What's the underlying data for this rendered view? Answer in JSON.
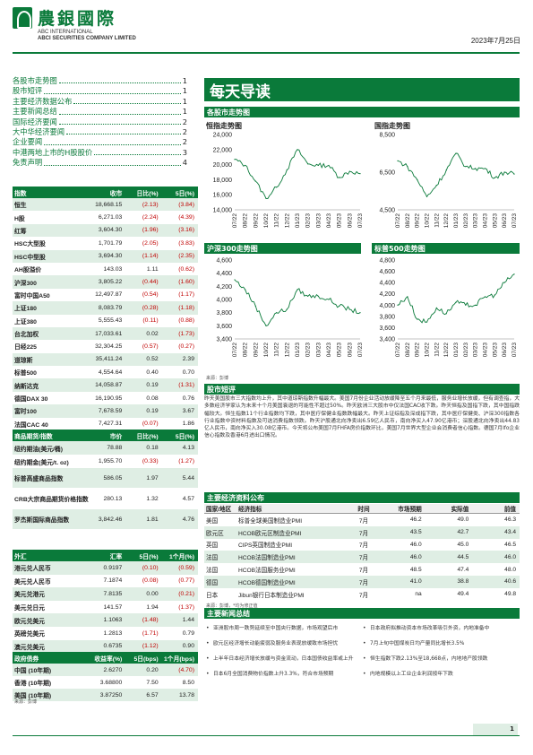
{
  "header": {
    "bank_cn": "農銀國際",
    "bank_en1": "ABC INTERNATIONAL",
    "bank_en2": "ABCI SECURITIES COMPANY LIMITED",
    "date": "2023年7月25日"
  },
  "toc": [
    {
      "label": "各股市走势图",
      "page": "1"
    },
    {
      "label": "股市短评",
      "page": "1"
    },
    {
      "label": "主要经济数据公布",
      "page": "1"
    },
    {
      "label": "主要新闻总结",
      "page": "1"
    },
    {
      "label": "国际经济要闻",
      "page": "2"
    },
    {
      "label": "大中华经济要闻",
      "page": "2"
    },
    {
      "label": "企业要闻",
      "page": "2"
    },
    {
      "label": "中港两地上市的H股股价",
      "page": "3"
    },
    {
      "label": "免责声明",
      "page": "4"
    }
  ],
  "title": "每天导读",
  "indices": {
    "headers": [
      "指数",
      "收市",
      "日比(%)",
      "5日(%)"
    ],
    "rows": [
      [
        "恒生",
        "18,668.15",
        "(2.13)",
        "(3.84)"
      ],
      [
        "H股",
        "6,271.03",
        "(2.24)",
        "(4.39)"
      ],
      [
        "红筹",
        "3,604.30",
        "(1.96)",
        "(3.16)"
      ],
      [
        "HSC大型股",
        "1,701.79",
        "(2.05)",
        "(3.83)"
      ],
      [
        "HSC中型股",
        "3,694.30",
        "(1.14)",
        "(2.35)"
      ],
      [
        "AH股溢价",
        "143.03",
        "1.11",
        "(0.62)"
      ],
      [
        "沪深300",
        "3,805.22",
        "(0.44)",
        "(1.60)"
      ],
      [
        "富时中国A50",
        "12,497.87",
        "(0.54)",
        "(1.17)"
      ],
      [
        "上证180",
        "8,083.79",
        "(0.28)",
        "(1.18)"
      ],
      [
        "上证380",
        "5,555.43",
        "(0.11)",
        "(0.88)"
      ],
      [
        "台北加权",
        "17,033.61",
        "0.02",
        "(1.73)"
      ],
      [
        "日经225",
        "32,304.25",
        "(0.57)",
        "(0.27)"
      ],
      [
        "道琼斯",
        "35,411.24",
        "0.52",
        "2.39"
      ],
      [
        "标普500",
        "4,554.64",
        "0.40",
        "0.70"
      ],
      [
        "纳斯达克",
        "14,058.87",
        "0.19",
        "(1.31)"
      ],
      [
        "德国DAX 30",
        "16,190.95",
        "0.08",
        "0.76"
      ],
      [
        "富时100",
        "7,678.59",
        "0.19",
        "3.67"
      ],
      [
        "法国CAC 40",
        "7,427.31",
        "(0.07)",
        "1.86"
      ]
    ]
  },
  "commodities": {
    "headers": [
      "商品期货/指数",
      "市价",
      "日比(%)",
      "5日(%)"
    ],
    "rows": [
      [
        "纽约期油(美元/桶)",
        "78.88",
        "0.18",
        "4.13"
      ],
      [
        "纽约期金(美元/t. oz)",
        "1,955.70",
        "(0.33)",
        "(1.27)"
      ],
      [
        "标普高盛商品指数",
        "586.05",
        "1.97",
        "5.44"
      ],
      [
        "CRB大宗商品期货价格指数",
        "280.13",
        "1.32",
        "4.57"
      ],
      [
        "罗杰斯国际商品指数",
        "3,842.46",
        "1.81",
        "4.76"
      ]
    ]
  },
  "fx": {
    "headers": [
      "外汇",
      "汇率",
      "5日(%)",
      "1个月(%)"
    ],
    "rows": [
      [
        "港元兑人民币",
        "0.9197",
        "(0.10)",
        "(0.59)"
      ],
      [
        "美元兑人民币",
        "7.1874",
        "(0.08)",
        "(0.77)"
      ],
      [
        "美元兑港元",
        "7.8135",
        "0.00",
        "(0.21)"
      ],
      [
        "美元兑日元",
        "141.57",
        "1.94",
        "(1.37)"
      ],
      [
        "欧元兑美元",
        "1.1063",
        "(1.48)",
        "1.44"
      ],
      [
        "英磅兑美元",
        "1.2813",
        "(1.71)",
        "0.79"
      ],
      [
        "澳元兑美元",
        "0.6735",
        "(1.12)",
        "0.90"
      ]
    ]
  },
  "bonds": {
    "headers": [
      "政府债券",
      "收益率(%)",
      "5日(bps)",
      "1个月(bps)"
    ],
    "rows": [
      [
        "中国 (10年期)",
        "2.6270",
        "0.20",
        "(4.70)"
      ],
      [
        "香港 (10年期)",
        "3.68800",
        "7.50",
        "8.50"
      ],
      [
        "美国 (10年期)",
        "3.87250",
        "6.57",
        "13.78"
      ]
    ]
  },
  "table_source": "来源：彭博",
  "section_charts": "各股市走势图",
  "charts_source": "来源：彭博",
  "chart_data": [
    {
      "type": "line",
      "title": "恒指走势图",
      "x": [
        "07/22",
        "08/22",
        "09/22",
        "10/22",
        "11/22",
        "12/22",
        "01/23",
        "02/23",
        "03/23",
        "04/23",
        "05/23",
        "06/23",
        "07/23"
      ],
      "values": [
        20700,
        19900,
        17800,
        15500,
        17000,
        19300,
        22000,
        20100,
        19900,
        19900,
        18300,
        19100,
        18800
      ],
      "ylim": [
        14000,
        24000
      ],
      "yticks": [
        "24,000",
        "22,000",
        "20,000",
        "18,000",
        "16,000",
        "14,000"
      ]
    },
    {
      "type": "line",
      "title": "国指走势图",
      "x": [
        "07/22",
        "08/22",
        "09/22",
        "10/22",
        "11/22",
        "12/22",
        "01/23",
        "02/23",
        "03/23",
        "04/23",
        "05/23",
        "06/23",
        "07/23"
      ],
      "values": [
        7100,
        6800,
        6100,
        5200,
        5800,
        6600,
        7500,
        6800,
        6700,
        6700,
        6200,
        6500,
        6400
      ],
      "ylim": [
        4500,
        8500
      ],
      "yticks": [
        "8,500",
        "6,500",
        "4,500"
      ]
    },
    {
      "type": "line",
      "title": "沪深300走势图",
      "x": [
        "07/22",
        "08/22",
        "09/22",
        "10/22",
        "11/22",
        "12/22",
        "01/23",
        "02/23",
        "03/23",
        "04/23",
        "05/23",
        "06/23",
        "07/23"
      ],
      "values": [
        4300,
        4150,
        3900,
        3600,
        3800,
        3850,
        4150,
        4050,
        4050,
        4000,
        3900,
        3850,
        3800
      ],
      "ylim": [
        3400,
        4600
      ],
      "yticks": [
        "4,600",
        "4,400",
        "4,200",
        "4,000",
        "3,800",
        "3,600",
        "3,400"
      ]
    },
    {
      "type": "line",
      "title": "标普500走势图",
      "x": [
        "07/22",
        "08/22",
        "09/22",
        "10/22",
        "11/22",
        "12/22",
        "01/23",
        "02/23",
        "03/23",
        "04/23",
        "05/23",
        "06/23",
        "07/23"
      ],
      "values": [
        4000,
        4150,
        3750,
        3700,
        3950,
        3850,
        4050,
        4000,
        4000,
        4150,
        4180,
        4400,
        4550
      ],
      "ylim": [
        3400,
        4800
      ],
      "yticks": [
        "4,800",
        "4,600",
        "4,400",
        "4,200",
        "4,000",
        "3,800",
        "3,600",
        "3,400"
      ]
    }
  ],
  "comment_title": "股市短评",
  "comment_text": "昨天美国股市三大指数均上升，其中道琼斯指数升幅最大。美国7月份企业活动放缓降至五个月来最低，服务业增长放缓，但有调查指，大多数经济学家认为未来十个月美国衰退的可能性不超过50%。昨天欧洲三大股市中仅法国CAC收下跌。昨天恒指及国指下跌，其中国指跌幅较大。恒生指数11个行业指数均下跌，其中医疗保健业指数跌幅最大。昨天上证综指及深成指下跌，其中医疗保健类、沪深300指数各行业指数中资材料指数及可选消费指数领跌。昨天沪股通北向净卖出6.59亿人民币，南向净买入47.90亿港币；深股通北向净卖出44.83亿人民币，南向净买入30.08亿港币。今天将公布美国7月FHFA房价指数环比，美国7月世界大型企业会消费者信心指数。德国7月Ifo企业信心指数及香港6月进出口情况。",
  "econ": {
    "section": "主要经济资料公布",
    "headers": [
      "国家/地区",
      "经济指标",
      "时间",
      "市场预期",
      "实际值",
      "前值"
    ],
    "rows": [
      [
        "美国",
        "标普全球美国制造业PMI",
        "7月",
        "46.2",
        "49.0",
        "46.3"
      ],
      [
        "欧元区",
        "HCOB欧元区制造业PMI",
        "7月",
        "43.5",
        "42.7",
        "43.4"
      ],
      [
        "英国",
        "CIPS英国制造业PMI",
        "7月",
        "46.0",
        "45.0",
        "46.5"
      ],
      [
        "法国",
        "HCOB法国制造业PMI",
        "7月",
        "46.0",
        "44.5",
        "46.0"
      ],
      [
        "法国",
        "HCOB法国服务业PMI",
        "7月",
        "48.5",
        "47.4",
        "48.0"
      ],
      [
        "德国",
        "HCOB德国制造业PMI",
        "7月",
        "41.0",
        "38.8",
        "40.6"
      ],
      [
        "日本",
        "Jibun银行日本制造业PMI",
        "7月",
        "na",
        "49.4",
        "49.8"
      ]
    ],
    "source": "来源：彭博，*均为修正值"
  },
  "news": {
    "section": "主要新闻总结",
    "left": [
      "亚洲股市周一跌势延续至中国央行数据，市场观望后市",
      "欧元区经济增长动能疲弱及服务业表现放缓致市场担忧",
      "上半年日本经济增长放缓与资金流动，日本国债收益率或上升",
      "日本6月全国消费物价指数上升3.3%，符合市场预期"
    ],
    "right": [
      "日本政府拟推动资本市场改革吸引外资，内地准备中",
      "7月上旬中国煤炭日均产量同比增长3.5%",
      "恒生指数下跌2.13%至18,668点，内地地产股领跌",
      "内地规模以上工业企业利润按年下跌"
    ]
  },
  "page_number": "1"
}
